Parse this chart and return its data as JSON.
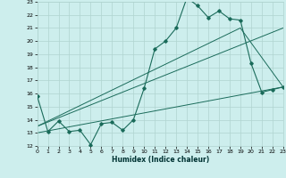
{
  "xlabel": "Humidex (Indice chaleur)",
  "background_color": "#cdeeed",
  "grid_color": "#b0d4d0",
  "line_color": "#1a6b5a",
  "x_min": 0,
  "x_max": 23,
  "y_min": 12,
  "y_max": 23,
  "series1_x": [
    0,
    1,
    2,
    3,
    4,
    5,
    6,
    7,
    8,
    9,
    10,
    11,
    12,
    13,
    14,
    15,
    16,
    17,
    18,
    19,
    20,
    21,
    22,
    23
  ],
  "series1_y": [
    15.8,
    13.1,
    13.9,
    13.1,
    13.2,
    12.1,
    13.7,
    13.8,
    13.2,
    14.0,
    16.4,
    19.4,
    20.0,
    21.0,
    23.3,
    22.7,
    21.8,
    22.3,
    21.7,
    21.6,
    18.3,
    16.1,
    16.3,
    16.5
  ],
  "line1_x": [
    0,
    23
  ],
  "line1_y": [
    13.0,
    16.5
  ],
  "line2_x": [
    0,
    23
  ],
  "line2_y": [
    13.5,
    21.0
  ],
  "line3_x": [
    0,
    19,
    23
  ],
  "line3_y": [
    13.5,
    21.0,
    16.5
  ]
}
